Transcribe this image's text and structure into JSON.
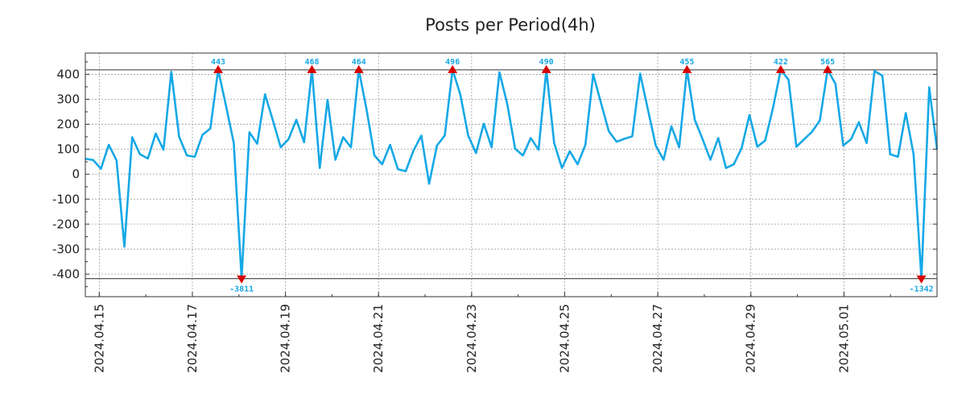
{
  "chart_data": {
    "type": "line",
    "title": "Posts per Period(4h)",
    "xlabel": "",
    "ylabel": "",
    "ylim": [
      -490,
      485
    ],
    "yticks": [
      400,
      300,
      200,
      100,
      0,
      -100,
      -200,
      -300,
      -400
    ],
    "date_ticks": [
      "2024.04.15",
      "2024.04.17",
      "2024.04.19",
      "2024.04.21",
      "2024.04.23",
      "2024.04.25",
      "2024.04.27",
      "2024.04.29",
      "2024.05.01"
    ],
    "x_days_range": [
      -0.3,
      18.0
    ],
    "grid": true,
    "reference_lines": [
      418,
      -418
    ],
    "series": [
      {
        "name": "Posts",
        "color": "#15a8e6",
        "values": [
          62,
          57,
          22,
          118,
          55,
          -290,
          148,
          80,
          63,
          163,
          98,
          410,
          150,
          75,
          70,
          158,
          183,
          418,
          275,
          125,
          -418,
          168,
          122,
          320,
          215,
          108,
          140,
          218,
          128,
          418,
          25,
          298,
          58,
          148,
          108,
          418,
          258,
          75,
          40,
          118,
          20,
          12,
          95,
          155,
          -38,
          115,
          155,
          418,
          318,
          155,
          85,
          202,
          108,
          408,
          282,
          102,
          75,
          145,
          98,
          418,
          125,
          25,
          92,
          40,
          118,
          400,
          285,
          172,
          130,
          142,
          152,
          403,
          258,
          115,
          58,
          192,
          108,
          418,
          218,
          140,
          58,
          145,
          25,
          40,
          105,
          237,
          110,
          135,
          265,
          418,
          378,
          110,
          140,
          170,
          215,
          418,
          362,
          115,
          140,
          208,
          125,
          413,
          395,
          80,
          70,
          245,
          80,
          -418,
          348,
          100
        ]
      }
    ],
    "annotations": [
      {
        "index": 17,
        "text": "443",
        "kind": "max"
      },
      {
        "index": 20,
        "text": "-3811",
        "kind": "min"
      },
      {
        "index": 29,
        "text": "468",
        "kind": "max"
      },
      {
        "index": 35,
        "text": "464",
        "kind": "max"
      },
      {
        "index": 47,
        "text": "496",
        "kind": "max"
      },
      {
        "index": 59,
        "text": "490",
        "kind": "max"
      },
      {
        "index": 77,
        "text": "455",
        "kind": "max"
      },
      {
        "index": 89,
        "text": "422",
        "kind": "max"
      },
      {
        "index": 95,
        "text": "565",
        "kind": "max"
      },
      {
        "index": 107,
        "text": "-1342",
        "kind": "min"
      }
    ],
    "colors": {
      "line": "#15a8e6",
      "marker": "#d80000",
      "label": "#15a8e6"
    }
  }
}
